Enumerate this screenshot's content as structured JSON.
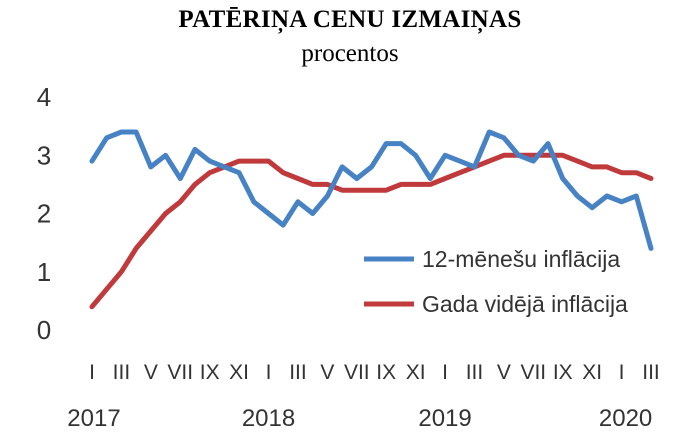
{
  "chart_data": {
    "type": "line",
    "title": "PATĒRIŅA CENU IZMAIŅAS",
    "subtitle": "procentos",
    "ylim": [
      0,
      4
    ],
    "y_ticks": [
      "0",
      "1",
      "2",
      "3",
      "4"
    ],
    "x_month_labels": [
      "I",
      "III",
      "V",
      "VII",
      "IX",
      "XI",
      "I",
      "III",
      "V",
      "VII",
      "IX",
      "XI",
      "I",
      "III",
      "V",
      "VII",
      "IX",
      "XI",
      "I",
      "III"
    ],
    "x_year_labels": [
      "2017",
      "2018",
      "2019",
      "2020"
    ],
    "grid": false,
    "legend_position": "lower-right",
    "series": [
      {
        "name": "12-mēnešu inflācija",
        "color": "#4682c4",
        "values": [
          2.9,
          3.3,
          3.4,
          3.4,
          2.8,
          3.0,
          2.6,
          3.1,
          2.9,
          2.8,
          2.7,
          2.2,
          2.0,
          1.8,
          2.2,
          2.0,
          2.3,
          2.8,
          2.6,
          2.8,
          3.2,
          3.2,
          3.0,
          2.6,
          3.0,
          2.9,
          2.8,
          3.4,
          3.3,
          3.0,
          2.9,
          3.2,
          2.6,
          2.3,
          2.1,
          2.3,
          2.2,
          2.3,
          1.4
        ]
      },
      {
        "name": "Gada vidējā inflācija",
        "color": "#c0393b",
        "values": [
          0.4,
          0.7,
          1.0,
          1.4,
          1.7,
          2.0,
          2.2,
          2.5,
          2.7,
          2.8,
          2.9,
          2.9,
          2.9,
          2.7,
          2.6,
          2.5,
          2.5,
          2.4,
          2.4,
          2.4,
          2.4,
          2.5,
          2.5,
          2.5,
          2.6,
          2.7,
          2.8,
          2.9,
          3.0,
          3.0,
          3.0,
          3.0,
          3.0,
          2.9,
          2.8,
          2.8,
          2.7,
          2.7,
          2.6
        ]
      }
    ]
  }
}
